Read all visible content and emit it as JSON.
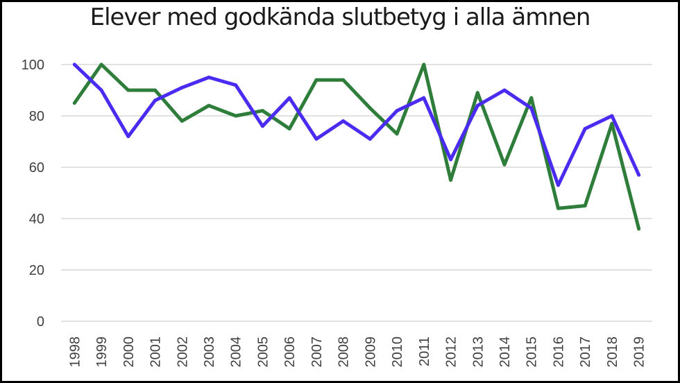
{
  "chart_data": {
    "type": "line",
    "title": "Elever med godkända slutbetyg i alla ämnen",
    "xlabel": "",
    "ylabel": "",
    "x": [
      "1998",
      "1999",
      "2000",
      "2001",
      "2002",
      "2003",
      "2004",
      "2005",
      "2006",
      "2007",
      "2008",
      "2009",
      "2010",
      "2011",
      "2012",
      "2013",
      "2014",
      "2015",
      "2016",
      "2017",
      "2018",
      "2019"
    ],
    "ylim": [
      0,
      100
    ],
    "yticks": [
      "0",
      "20",
      "40",
      "60",
      "80",
      "100"
    ],
    "grid": true,
    "legend": "none",
    "series": [
      {
        "color": "#2e7d3a",
        "values": [
          85,
          100,
          90,
          90,
          78,
          84,
          80,
          82,
          75,
          94,
          94,
          83,
          73,
          100,
          55,
          89,
          61,
          87,
          44,
          45,
          77,
          36
        ]
      },
      {
        "color": "#4a2cf0",
        "values": [
          100,
          90,
          72,
          86,
          91,
          95,
          92,
          76,
          87,
          71,
          78,
          71,
          82,
          87,
          63,
          84,
          90,
          83,
          53,
          75,
          80,
          57
        ]
      }
    ]
  }
}
